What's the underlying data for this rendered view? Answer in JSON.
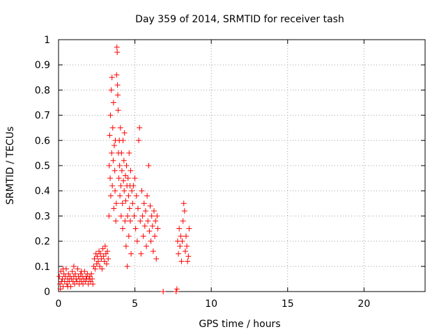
{
  "chart_data": {
    "type": "scatter",
    "title": "Day 359 of 2014, SRMTID for receiver tash",
    "xlabel": "GPS time / hours",
    "ylabel": "SRMTID / TECUs",
    "xlim": [
      0,
      24
    ],
    "ylim": [
      0,
      1
    ],
    "xticks": [
      0,
      5,
      10,
      15,
      20
    ],
    "yticks": [
      0,
      0.1,
      0.2,
      0.3,
      0.4,
      0.5,
      0.6,
      0.7,
      0.8,
      0.9,
      1
    ],
    "xtick_labels": [
      "0",
      "5",
      "10",
      "15",
      "20"
    ],
    "ytick_labels": [
      "0",
      "0.1",
      "0.2",
      "0.3",
      "0.4",
      "0.5",
      "0.6",
      "0.7",
      "0.8",
      "0.9",
      "1"
    ],
    "grid": true,
    "marker": "+",
    "series": [
      {
        "name": "SRMTID",
        "color": "#ff0000",
        "description_points": "estimated clusters read from plot",
        "points": [
          [
            0.05,
            0.06
          ],
          [
            0.1,
            0.03
          ],
          [
            0.15,
            0.08
          ],
          [
            0.2,
            0.04
          ],
          [
            0.25,
            0.05
          ],
          [
            0.3,
            0.02
          ],
          [
            0.35,
            0.07
          ],
          [
            0.4,
            0.04
          ],
          [
            0.45,
            0.06
          ],
          [
            0.5,
            0.09
          ],
          [
            0.55,
            0.03
          ],
          [
            0.6,
            0.05
          ],
          [
            0.65,
            0.07
          ],
          [
            0.7,
            0.04
          ],
          [
            0.75,
            0.06
          ],
          [
            0.8,
            0.02
          ],
          [
            0.85,
            0.05
          ],
          [
            0.9,
            0.08
          ],
          [
            0.95,
            0.04
          ],
          [
            1.0,
            0.06
          ],
          [
            1.05,
            0.03
          ],
          [
            1.1,
            0.07
          ],
          [
            1.15,
            0.05
          ],
          [
            1.2,
            0.04
          ],
          [
            1.25,
            0.09
          ],
          [
            1.3,
            0.06
          ],
          [
            1.35,
            0.03
          ],
          [
            1.4,
            0.05
          ],
          [
            1.45,
            0.07
          ],
          [
            1.5,
            0.04
          ],
          [
            1.55,
            0.06
          ],
          [
            1.6,
            0.03
          ],
          [
            1.65,
            0.05
          ],
          [
            1.7,
            0.08
          ],
          [
            1.75,
            0.04
          ],
          [
            1.8,
            0.06
          ],
          [
            1.85,
            0.05
          ],
          [
            1.9,
            0.07
          ],
          [
            1.95,
            0.03
          ],
          [
            2.0,
            0.05
          ],
          [
            2.05,
            0.06
          ],
          [
            2.1,
            0.04
          ],
          [
            2.15,
            0.07
          ],
          [
            2.2,
            0.05
          ],
          [
            2.25,
            0.03
          ],
          [
            0.12,
            0.01
          ],
          [
            0.6,
            0.02
          ],
          [
            1.0,
            0.1
          ],
          [
            0.3,
            0.09
          ],
          [
            1.5,
            0.08
          ],
          [
            2.3,
            0.1
          ],
          [
            2.35,
            0.13
          ],
          [
            2.4,
            0.09
          ],
          [
            2.45,
            0.15
          ],
          [
            2.5,
            0.11
          ],
          [
            2.55,
            0.14
          ],
          [
            2.6,
            0.12
          ],
          [
            2.65,
            0.16
          ],
          [
            2.7,
            0.1
          ],
          [
            2.75,
            0.15
          ],
          [
            2.8,
            0.13
          ],
          [
            2.85,
            0.09
          ],
          [
            2.9,
            0.17
          ],
          [
            2.95,
            0.14
          ],
          [
            3.0,
            0.12
          ],
          [
            3.05,
            0.18
          ],
          [
            3.1,
            0.15
          ],
          [
            3.15,
            0.11
          ],
          [
            3.2,
            0.16
          ],
          [
            3.25,
            0.13
          ],
          [
            3.3,
            0.3
          ],
          [
            3.32,
            0.5
          ],
          [
            3.35,
            0.62
          ],
          [
            3.38,
            0.45
          ],
          [
            3.4,
            0.7
          ],
          [
            3.42,
            0.38
          ],
          [
            3.45,
            0.8
          ],
          [
            3.48,
            0.55
          ],
          [
            3.5,
            0.85
          ],
          [
            3.52,
            0.42
          ],
          [
            3.55,
            0.65
          ],
          [
            3.58,
            0.52
          ],
          [
            3.6,
            0.75
          ],
          [
            3.62,
            0.33
          ],
          [
            3.65,
            0.58
          ],
          [
            3.68,
            0.48
          ],
          [
            3.7,
            0.4
          ],
          [
            3.72,
            0.6
          ],
          [
            3.75,
            0.28
          ],
          [
            3.78,
            0.35
          ],
          [
            3.8,
            0.86
          ],
          [
            3.82,
            0.97
          ],
          [
            3.84,
            0.95
          ],
          [
            3.86,
            0.82
          ],
          [
            3.88,
            0.78
          ],
          [
            3.9,
            0.72
          ],
          [
            3.92,
            0.55
          ],
          [
            3.95,
            0.45
          ],
          [
            3.98,
            0.6
          ],
          [
            4.0,
            0.5
          ],
          [
            4.02,
            0.38
          ],
          [
            4.05,
            0.65
          ],
          [
            4.08,
            0.42
          ],
          [
            4.1,
            0.3
          ],
          [
            4.12,
            0.55
          ],
          [
            4.15,
            0.48
          ],
          [
            4.18,
            0.35
          ],
          [
            4.2,
            0.25
          ],
          [
            4.22,
            0.6
          ],
          [
            4.25,
            0.44
          ],
          [
            4.28,
            0.52
          ],
          [
            4.3,
            0.4
          ],
          [
            4.32,
            0.63
          ],
          [
            4.35,
            0.28
          ],
          [
            4.38,
            0.46
          ],
          [
            4.4,
            0.36
          ],
          [
            4.42,
            0.18
          ],
          [
            4.45,
            0.5
          ],
          [
            4.48,
            0.42
          ],
          [
            4.5,
            0.1
          ],
          [
            4.52,
            0.3
          ],
          [
            4.55,
            0.45
          ],
          [
            4.58,
            0.38
          ],
          [
            4.6,
            0.22
          ],
          [
            4.62,
            0.55
          ],
          [
            4.65,
            0.33
          ],
          [
            4.68,
            0.42
          ],
          [
            4.7,
            0.28
          ],
          [
            4.72,
            0.48
          ],
          [
            4.75,
            0.15
          ],
          [
            4.8,
            0.4
          ],
          [
            4.85,
            0.35
          ],
          [
            4.9,
            0.42
          ],
          [
            4.95,
            0.3
          ],
          [
            5.0,
            0.45
          ],
          [
            5.05,
            0.25
          ],
          [
            5.1,
            0.38
          ],
          [
            5.15,
            0.2
          ],
          [
            5.2,
            0.33
          ],
          [
            5.25,
            0.6
          ],
          [
            5.3,
            0.65
          ],
          [
            5.35,
            0.28
          ],
          [
            5.4,
            0.15
          ],
          [
            5.45,
            0.4
          ],
          [
            5.5,
            0.3
          ],
          [
            5.55,
            0.22
          ],
          [
            5.6,
            0.35
          ],
          [
            5.65,
            0.26
          ],
          [
            5.7,
            0.32
          ],
          [
            5.75,
            0.18
          ],
          [
            5.8,
            0.38
          ],
          [
            5.85,
            0.28
          ],
          [
            5.9,
            0.5
          ],
          [
            5.95,
            0.24
          ],
          [
            6.0,
            0.34
          ],
          [
            6.05,
            0.2
          ],
          [
            6.1,
            0.3
          ],
          [
            6.15,
            0.26
          ],
          [
            6.2,
            0.16
          ],
          [
            6.25,
            0.32
          ],
          [
            6.3,
            0.22
          ],
          [
            6.35,
            0.28
          ],
          [
            6.4,
            0.13
          ],
          [
            6.45,
            0.3
          ],
          [
            6.5,
            0.25
          ],
          [
            6.85,
            0.0
          ],
          [
            7.7,
            0.0
          ],
          [
            7.75,
            0.01
          ],
          [
            7.8,
            0.2
          ],
          [
            7.85,
            0.15
          ],
          [
            7.9,
            0.25
          ],
          [
            7.95,
            0.18
          ],
          [
            8.0,
            0.22
          ],
          [
            8.05,
            0.12
          ],
          [
            8.1,
            0.2
          ],
          [
            8.15,
            0.28
          ],
          [
            8.2,
            0.35
          ],
          [
            8.25,
            0.32
          ],
          [
            8.3,
            0.16
          ],
          [
            8.35,
            0.22
          ],
          [
            8.4,
            0.18
          ],
          [
            8.45,
            0.12
          ],
          [
            8.5,
            0.14
          ],
          [
            8.55,
            0.25
          ]
        ]
      }
    ]
  }
}
